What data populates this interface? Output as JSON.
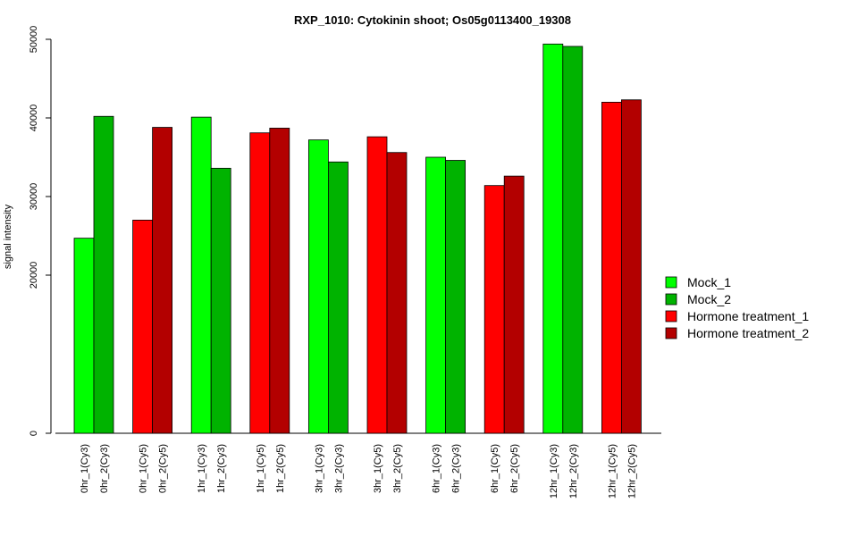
{
  "chart_data": {
    "type": "bar",
    "title": "RXP_1010: Cytokinin shoot; Os05g0113400_19308",
    "ylabel": "signal intensity",
    "xlabel": "",
    "y_ticks": [
      0,
      20000,
      30000,
      40000,
      50000
    ],
    "y_tick_labels": [
      "0",
      "20000",
      "30000",
      "40000",
      "50000"
    ],
    "categories": [
      "0hr_1(Cy3)",
      "0hr_2(Cy3)",
      "0hr_1(Cy5)",
      "0hr_2(Cy5)",
      "1hr_1(Cy3)",
      "1hr_2(Cy3)",
      "1hr_1(Cy5)",
      "1hr_2(Cy5)",
      "3hr_1(Cy3)",
      "3hr_2(Cy3)",
      "3hr_1(Cy5)",
      "3hr_2(Cy5)",
      "6hr_1(Cy3)",
      "6hr_2(Cy3)",
      "6hr_1(Cy5)",
      "6hr_2(Cy5)",
      "12hr_1(Cy3)",
      "12hr_2(Cy3)",
      "12hr_1(Cy5)",
      "12hr_2(Cy5)"
    ],
    "values": [
      24700,
      40200,
      27000,
      38800,
      40100,
      33600,
      38100,
      38700,
      37200,
      34400,
      37600,
      35600,
      35000,
      34600,
      31400,
      32600,
      49400,
      49100,
      42000,
      42300
    ],
    "series_index": [
      0,
      1,
      2,
      3,
      0,
      1,
      2,
      3,
      0,
      1,
      2,
      3,
      0,
      1,
      2,
      3,
      0,
      1,
      2,
      3
    ],
    "series": [
      {
        "name": "Mock_1",
        "color": "#00ff00"
      },
      {
        "name": "Mock_2",
        "color": "#00b300"
      },
      {
        "name": "Hormone treatment_1",
        "color": "#ff0000"
      },
      {
        "name": "Hormone treatment_2",
        "color": "#b30000"
      }
    ],
    "legend_position": "right",
    "grid": false
  }
}
